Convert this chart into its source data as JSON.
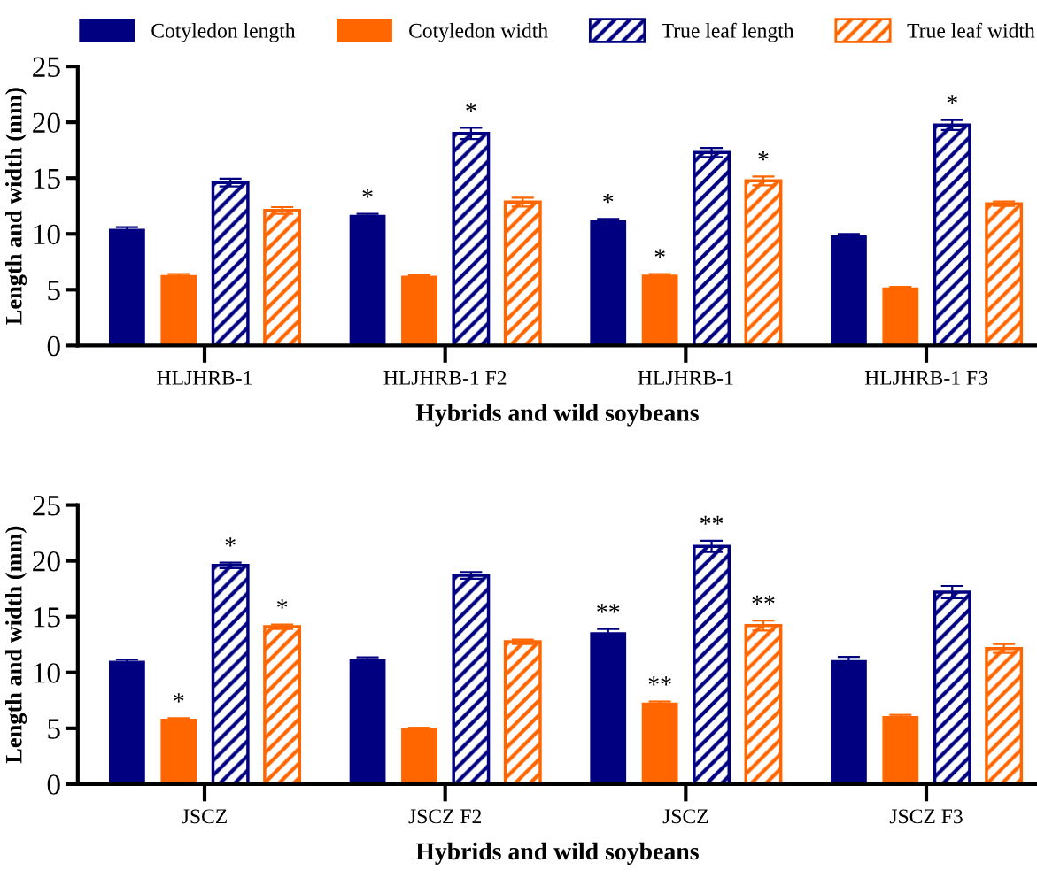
{
  "chart_data": [
    {
      "type": "bar",
      "xlabel": "Hybrids and wild soybeans",
      "ylabel": "Length and width (mm)",
      "categories": [
        "HLJHRB-1",
        "HLJHRB-1 F2",
        "HLJHRB-1",
        "HLJHRB-1 F3"
      ],
      "ylim": [
        0,
        25
      ],
      "yticks": [
        0,
        5,
        10,
        15,
        20,
        25
      ],
      "legend": "top",
      "grid": false,
      "series": [
        {
          "name": "Cotyledon length",
          "color": "#000080",
          "values": [
            10.4,
            11.65,
            11.15,
            9.8
          ],
          "errors": [
            0.2,
            0.15,
            0.2,
            0.2
          ],
          "value_labels": [
            null,
            "*",
            "*",
            null
          ]
        },
        {
          "name": "Cotyledon width",
          "color": "#ff6600",
          "values": [
            6.25,
            6.2,
            6.3,
            5.15
          ],
          "errors": [
            0.15,
            0.1,
            0.1,
            0.1
          ],
          "value_labels": [
            null,
            null,
            "*",
            null
          ]
        },
        {
          "name": "True leaf length",
          "color": "#000080",
          "values": [
            14.6,
            19.0,
            17.3,
            19.75
          ],
          "errors": [
            0.35,
            0.5,
            0.4,
            0.45
          ],
          "value_labels": [
            null,
            "*",
            null,
            "*"
          ]
        },
        {
          "name": "True leaf width",
          "color": "#ff6600",
          "values": [
            12.1,
            12.85,
            14.75,
            12.7
          ],
          "errors": [
            0.3,
            0.4,
            0.4,
            0.2
          ],
          "value_labels": [
            null,
            null,
            "*",
            null
          ]
        }
      ]
    },
    {
      "type": "bar",
      "xlabel": "Hybrids and wild soybeans",
      "ylabel": "Length and width (mm)",
      "categories": [
        "JSCZ",
        "JSCZ F2",
        "JSCZ",
        "JSCZ F3"
      ],
      "ylim": [
        0,
        25
      ],
      "yticks": [
        0,
        5,
        10,
        15,
        20,
        25
      ],
      "grid": false,
      "series": [
        {
          "color": "#000080",
          "values": [
            11.0,
            11.15,
            13.55,
            11.05
          ],
          "errors": [
            0.15,
            0.2,
            0.35,
            0.35
          ],
          "value_labels": [
            null,
            null,
            "**",
            null
          ]
        },
        {
          "color": "#ff6600",
          "values": [
            5.8,
            4.95,
            7.25,
            6.05
          ],
          "errors": [
            0.1,
            0.1,
            0.15,
            0.15
          ],
          "value_labels": [
            "*",
            null,
            "**",
            null
          ]
        },
        {
          "color": "#000080",
          "values": [
            19.6,
            18.7,
            21.3,
            17.2
          ],
          "errors": [
            0.25,
            0.3,
            0.5,
            0.55
          ],
          "value_labels": [
            "*",
            null,
            "**",
            null
          ]
        },
        {
          "color": "#ff6600",
          "values": [
            14.1,
            12.75,
            14.2,
            12.15
          ],
          "errors": [
            0.2,
            0.2,
            0.45,
            0.4
          ],
          "value_labels": [
            "*",
            null,
            "**",
            null
          ]
        }
      ]
    }
  ]
}
